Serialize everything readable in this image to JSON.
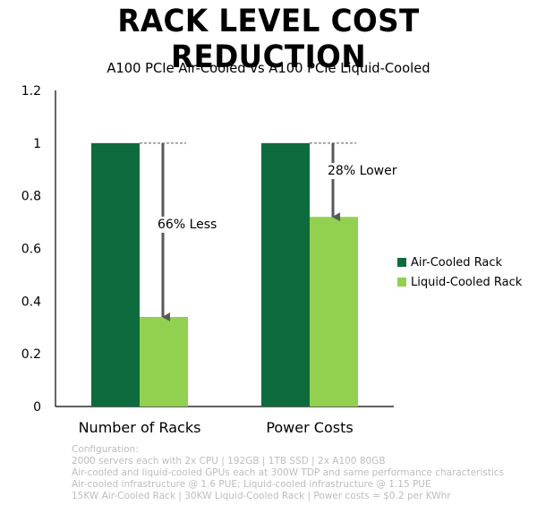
{
  "header": {
    "title": "RACK LEVEL COST REDUCTION"
  },
  "chart_data": {
    "type": "bar",
    "title": "A100 PCIe Air-Cooled vs A100 PCIe Liquid-Cooled",
    "categories": [
      "Number of Racks",
      "Power Costs"
    ],
    "series": [
      {
        "name": "Air-Cooled Rack",
        "color": "#0e6b3d",
        "values": [
          1,
          1
        ]
      },
      {
        "name": "Liquid-Cooled Rack",
        "color": "#92d050",
        "values": [
          0.34,
          0.72
        ]
      }
    ],
    "ylim": [
      0,
      1.2
    ],
    "yticks": [
      "0",
      "0.2",
      "0.4",
      "0.6",
      "0.8",
      "1",
      "1.2"
    ],
    "grid": false,
    "legend": "right",
    "annotations": [
      {
        "category": "Number of Racks",
        "from": 1,
        "to": 0.34,
        "label": "66% Less"
      },
      {
        "category": "Power Costs",
        "from": 1,
        "to": 0.72,
        "label": "28% Lower"
      }
    ]
  },
  "footnote": {
    "lines": [
      "Configuration:",
      "2000 servers each with 2x CPU | 192GB | 1TB SSD | 2x A100 80GB",
      "Air-cooled and liquid-cooled GPUs each at 300W TDP and same performance characteristics",
      "Air-cooled infrastructure @ 1.6 PUE; Liquid-cooled infrastructure @ 1.15 PUE",
      "15KW Air-Cooled Rack | 30KW Liquid-Cooled Rack | Power costs = $0.2 per KWhr"
    ]
  }
}
